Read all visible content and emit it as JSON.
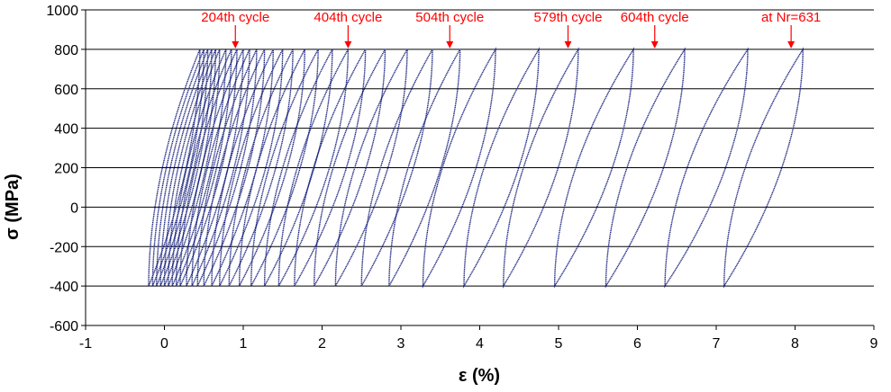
{
  "chart_data": {
    "type": "line",
    "xlabel": "ε (%)",
    "ylabel": "σ (MPa)",
    "xlim": [
      -1,
      9
    ],
    "ylim": [
      -600,
      1000
    ],
    "x_ticks": [
      -1,
      0,
      1,
      2,
      3,
      4,
      5,
      6,
      7,
      8,
      9
    ],
    "y_ticks": [
      -600,
      -400,
      -200,
      0,
      200,
      400,
      600,
      800,
      1000
    ],
    "grid": "horizontal",
    "legend": "none",
    "line_color": "#1a237e",
    "annotation_color": "#ff0000",
    "sigma_max": 800,
    "sigma_min": -400,
    "series": [
      {
        "x_min": -0.2,
        "x_max": 0.45
      },
      {
        "x_min": -0.15,
        "x_max": 0.5
      },
      {
        "x_min": -0.1,
        "x_max": 0.55
      },
      {
        "x_min": -0.05,
        "x_max": 0.6
      },
      {
        "x_min": 0.0,
        "x_max": 0.65
      },
      {
        "x_min": 0.05,
        "x_max": 0.7
      },
      {
        "x_min": 0.1,
        "x_max": 0.78
      },
      {
        "x_min": 0.15,
        "x_max": 0.85
      },
      {
        "x_min": 0.2,
        "x_max": 0.92
      },
      {
        "x_min": 0.28,
        "x_max": 1.0
      },
      {
        "x_min": 0.35,
        "x_max": 1.08
      },
      {
        "x_min": 0.42,
        "x_max": 1.17
      },
      {
        "x_min": 0.5,
        "x_max": 1.27
      },
      {
        "x_min": 0.6,
        "x_max": 1.38
      },
      {
        "x_min": 0.7,
        "x_max": 1.5
      },
      {
        "x_min": 0.82,
        "x_max": 1.63
      },
      {
        "x_min": 0.95,
        "x_max": 1.78
      },
      {
        "x_min": 1.1,
        "x_max": 1.95
      },
      {
        "x_min": 1.27,
        "x_max": 2.13
      },
      {
        "x_min": 1.45,
        "x_max": 2.33
      },
      {
        "x_min": 1.65,
        "x_max": 2.55
      },
      {
        "x_min": 1.9,
        "x_max": 2.8
      },
      {
        "x_min": 2.17,
        "x_max": 3.08
      },
      {
        "x_min": 2.5,
        "x_max": 3.4
      },
      {
        "x_min": 2.85,
        "x_max": 3.75
      },
      {
        "x_min": 3.28,
        "x_max": 4.2
      },
      {
        "x_min": 3.8,
        "x_max": 4.75
      },
      {
        "x_min": 4.3,
        "x_max": 5.25
      },
      {
        "x_min": 4.95,
        "x_max": 5.95
      },
      {
        "x_min": 5.6,
        "x_max": 6.6
      },
      {
        "x_min": 6.35,
        "x_max": 7.4
      },
      {
        "x_min": 7.1,
        "x_max": 8.1
      }
    ],
    "annotations": [
      {
        "text": "204th cycle",
        "x": 0.9,
        "y": 800
      },
      {
        "text": "404th cycle",
        "x": 2.33,
        "y": 800
      },
      {
        "text": "504th cycle",
        "x": 3.62,
        "y": 800
      },
      {
        "text": "579th cycle",
        "x": 5.12,
        "y": 800
      },
      {
        "text": "604th cycle",
        "x": 6.22,
        "y": 800
      },
      {
        "text": "at Nr=631",
        "x": 7.95,
        "y": 800
      }
    ]
  }
}
